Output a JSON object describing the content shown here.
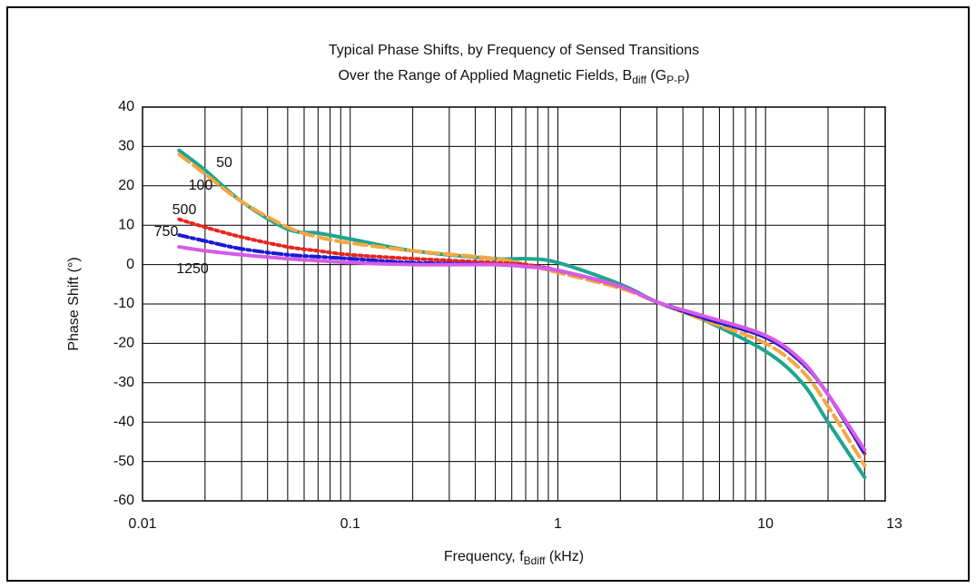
{
  "chart_data": {
    "type": "line",
    "title": "Typical Phase Shifts, by Frequency of Sensed Transitions",
    "subtitle": [
      "Over the Range of Applied Magnetic Fields, B",
      "diff",
      " (G",
      "P-P",
      ")"
    ],
    "x_label": [
      "Frequency, f",
      "Bdiff",
      "  (kHz)"
    ],
    "y_label": "Phase Shift (°)",
    "x_scale": "log",
    "xlim": [
      0.01,
      37.7
    ],
    "xticks": [
      0.01,
      0.1,
      1,
      10
    ],
    "x_end_label": "13",
    "x_minor_grid": [
      0.02,
      0.03,
      0.04,
      0.05,
      0.06,
      0.07,
      0.08,
      0.09,
      0.2,
      0.3,
      0.4,
      0.5,
      0.6,
      0.7,
      0.8,
      0.9,
      2,
      3,
      4,
      5,
      6,
      7,
      8,
      9,
      20,
      30
    ],
    "ylim": [
      -60,
      40
    ],
    "yticks": [
      -60,
      -50,
      -40,
      -30,
      -20,
      -10,
      0,
      10,
      20,
      30,
      40
    ],
    "grid": true,
    "x": [
      0.015,
      0.02,
      0.03,
      0.05,
      0.07,
      0.1,
      0.2,
      0.5,
      0.7,
      1,
      2,
      3,
      5,
      10,
      15,
      20,
      30
    ],
    "series": [
      {
        "name": "50",
        "color": "#1ea58f",
        "dash": "none",
        "width": 4,
        "values": [
          29,
          24,
          16,
          9,
          8,
          6.5,
          3.5,
          1.5,
          1.5,
          0.5,
          -5,
          -9.5,
          -14,
          -22,
          -30,
          -40,
          -54
        ]
      },
      {
        "name": "100",
        "color": "#f5a742",
        "dash": "14 6",
        "width": 4,
        "values": [
          28,
          23,
          16,
          9.5,
          7,
          5.5,
          3.5,
          1.5,
          0,
          -2,
          -6,
          -9.5,
          -14,
          -20,
          -27,
          -36,
          -51
        ]
      },
      {
        "name": "500",
        "color": "#e8251e",
        "dash": "3 4",
        "width": 4,
        "values": [
          11.5,
          9.5,
          7,
          4.5,
          3.5,
          2.5,
          1.5,
          0.5,
          0,
          -1.5,
          -5.5,
          -9.5,
          -13.5,
          -18.5,
          -25,
          -33,
          -48
        ]
      },
      {
        "name": "750",
        "color": "#1a1ad6",
        "dash": "10 4 3 4",
        "width": 4,
        "values": [
          7.5,
          6,
          4,
          2.5,
          2,
          1.5,
          0.5,
          0,
          -0.5,
          -1.5,
          -5.5,
          -9.5,
          -13.5,
          -18.5,
          -25,
          -33,
          -48
        ]
      },
      {
        "name": "1250",
        "color": "#d65ce6",
        "dash": "none",
        "width": 4,
        "values": [
          4.5,
          3.5,
          2.5,
          1.5,
          1,
          0.5,
          0,
          0,
          -0.5,
          -1.5,
          -5.5,
          -9.5,
          -13,
          -18,
          -24.5,
          -33,
          -47
        ]
      }
    ]
  }
}
